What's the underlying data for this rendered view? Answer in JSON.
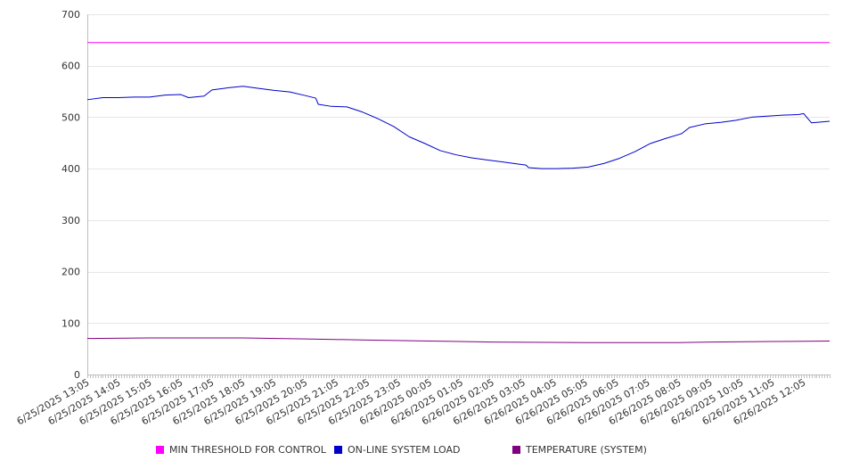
{
  "chart_data": {
    "type": "line",
    "title": "",
    "xlabel": "",
    "ylabel": "",
    "ylim": [
      0,
      700
    ],
    "yticks": [
      0,
      100,
      200,
      300,
      400,
      500,
      600,
      700
    ],
    "xlim": [
      "6/25/2025 13:05",
      "6/26/2025 12:55"
    ],
    "xtick_labels": [
      "6/25/2025 13:05",
      "6/25/2025 14:05",
      "6/25/2025 15:05",
      "6/25/2025 16:05",
      "6/25/2025 17:05",
      "6/25/2025 18:05",
      "6/25/2025 19:05",
      "6/25/2025 20:05",
      "6/25/2025 21:05",
      "6/25/2025 22:05",
      "6/25/2025 23:05",
      "6/26/2025 00:05",
      "6/26/2025 01:05",
      "6/26/2025 02:05",
      "6/26/2025 03:05",
      "6/26/2025 04:05",
      "6/26/2025 05:05",
      "6/26/2025 06:05",
      "6/26/2025 07:05",
      "6/26/2025 08:05",
      "6/26/2025 09:05",
      "6/26/2025 10:05",
      "6/26/2025 11:05",
      "6/26/2025 12:05"
    ],
    "grid": true,
    "legend_position": "bottom",
    "series": [
      {
        "name": "MIN THRESHOLD FOR CONTROL",
        "color": "#ff00ff",
        "points": [
          [
            "6/25/2025 13:05",
            645
          ],
          [
            "6/26/2025 12:55",
            645
          ]
        ]
      },
      {
        "name": "ON-LINE SYSTEM LOAD",
        "color": "#0000cc",
        "points": [
          [
            "6/25/2025 13:05",
            534
          ],
          [
            "6/25/2025 13:35",
            538
          ],
          [
            "6/25/2025 14:05",
            538
          ],
          [
            "6/25/2025 14:35",
            539
          ],
          [
            "6/25/2025 15:05",
            539
          ],
          [
            "6/25/2025 15:35",
            543
          ],
          [
            "6/25/2025 16:05",
            544
          ],
          [
            "6/25/2025 16:20",
            538
          ],
          [
            "6/25/2025 16:50",
            541
          ],
          [
            "6/25/2025 17:05",
            553
          ],
          [
            "6/25/2025 17:35",
            557
          ],
          [
            "6/25/2025 18:05",
            560
          ],
          [
            "6/25/2025 18:35",
            556
          ],
          [
            "6/25/2025 19:05",
            552
          ],
          [
            "6/25/2025 19:35",
            549
          ],
          [
            "6/25/2025 20:05",
            542
          ],
          [
            "6/25/2025 20:25",
            537
          ],
          [
            "6/25/2025 20:30",
            525
          ],
          [
            "6/25/2025 20:55",
            521
          ],
          [
            "6/25/2025 21:25",
            520
          ],
          [
            "6/25/2025 21:55",
            510
          ],
          [
            "6/25/2025 22:25",
            497
          ],
          [
            "6/25/2025 22:55",
            482
          ],
          [
            "6/25/2025 23:25",
            462
          ],
          [
            "6/25/2025 23:55",
            449
          ],
          [
            "6/26/2025 00:25",
            435
          ],
          [
            "6/26/2025 00:55",
            427
          ],
          [
            "6/26/2025 01:25",
            421
          ],
          [
            "6/26/2025 01:55",
            417
          ],
          [
            "6/26/2025 02:25",
            413
          ],
          [
            "6/26/2025 02:55",
            409
          ],
          [
            "6/26/2025 03:10",
            407
          ],
          [
            "6/26/2025 03:15",
            402
          ],
          [
            "6/26/2025 03:40",
            400
          ],
          [
            "6/26/2025 04:10",
            400
          ],
          [
            "6/26/2025 04:40",
            401
          ],
          [
            "6/26/2025 05:10",
            403
          ],
          [
            "6/26/2025 05:40",
            410
          ],
          [
            "6/26/2025 06:10",
            420
          ],
          [
            "6/26/2025 06:40",
            433
          ],
          [
            "6/26/2025 07:10",
            449
          ],
          [
            "6/26/2025 07:40",
            459
          ],
          [
            "6/26/2025 08:10",
            468
          ],
          [
            "6/26/2025 08:25",
            480
          ],
          [
            "6/26/2025 08:55",
            487
          ],
          [
            "6/26/2025 09:25",
            490
          ],
          [
            "6/26/2025 09:55",
            494
          ],
          [
            "6/26/2025 10:25",
            500
          ],
          [
            "6/26/2025 10:55",
            502
          ],
          [
            "6/26/2025 11:25",
            504
          ],
          [
            "6/26/2025 11:55",
            505
          ],
          [
            "6/26/2025 12:05",
            507
          ],
          [
            "6/26/2025 12:20",
            489
          ],
          [
            "6/26/2025 12:55",
            492
          ]
        ]
      },
      {
        "name": "TEMPERATURE (SYSTEM)",
        "color": "#800080",
        "points": [
          [
            "6/25/2025 13:05",
            70
          ],
          [
            "6/25/2025 15:05",
            71
          ],
          [
            "6/25/2025 18:05",
            71
          ],
          [
            "6/25/2025 20:05",
            69
          ],
          [
            "6/25/2025 22:05",
            67
          ],
          [
            "6/26/2025 00:05",
            65
          ],
          [
            "6/26/2025 02:05",
            63
          ],
          [
            "6/26/2025 05:05",
            62
          ],
          [
            "6/26/2025 08:05",
            62
          ],
          [
            "6/26/2025 09:05",
            63
          ],
          [
            "6/26/2025 11:05",
            64
          ],
          [
            "6/26/2025 12:55",
            65
          ]
        ]
      }
    ]
  }
}
